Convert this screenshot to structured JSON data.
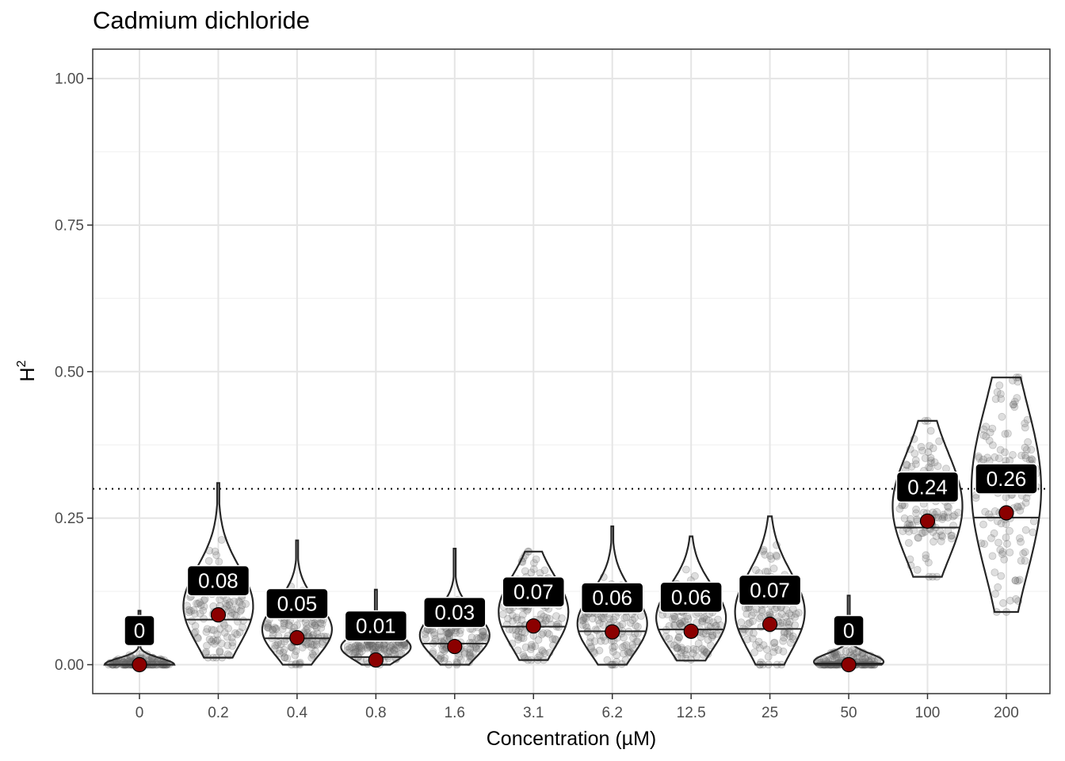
{
  "chart_data": {
    "type": "violin",
    "title": "Cadmium dichloride",
    "xlabel": "Concentration (µM)",
    "ylabel": "H",
    "ylabel_superscript": "2",
    "categories": [
      "0",
      "0.2",
      "0.4",
      "0.8",
      "1.6",
      "3.1",
      "6.2",
      "12.5",
      "25",
      "50",
      "100",
      "200"
    ],
    "y_ticks": [
      "0.00",
      "0.25",
      "0.50",
      "0.75",
      "1.00"
    ],
    "ylim": [
      -0.05,
      1.05
    ],
    "grid": true,
    "legend": "none",
    "reference_line": {
      "y": 0.3,
      "style": "dotted"
    },
    "point_estimate_labels": [
      "0",
      "0.08",
      "0.05",
      "0.01",
      "0.03",
      "0.07",
      "0.06",
      "0.06",
      "0.07",
      "0",
      "0.24",
      "0.26"
    ],
    "series": [
      {
        "point_estimates": [
          0.0,
          0.085,
          0.046,
          0.008,
          0.031,
          0.066,
          0.056,
          0.057,
          0.069,
          0.0,
          0.245,
          0.259
        ],
        "medians": [
          0.0,
          0.077,
          0.045,
          0.013,
          0.036,
          0.065,
          0.057,
          0.06,
          0.061,
          0.002,
          0.234,
          0.251
        ],
        "min": [
          0.0,
          0.012,
          0.0,
          0.0,
          0.0,
          0.008,
          0.0,
          0.007,
          0.0,
          0.0,
          0.15,
          0.09
        ],
        "max": [
          0.092,
          0.31,
          0.212,
          0.128,
          0.198,
          0.193,
          0.236,
          0.219,
          0.253,
          0.118,
          0.416,
          0.49
        ],
        "bulk_center": [
          0.0,
          0.1,
          0.06,
          0.03,
          0.05,
          0.09,
          0.07,
          0.08,
          0.09,
          0.005,
          0.27,
          0.3
        ]
      }
    ],
    "colors": {
      "violin_outline": "#262626",
      "jitter_points": "#666666",
      "point_estimate": "#8b0000",
      "label_bg": "#000000",
      "label_text": "#ffffff",
      "grid_major": "#e5e5e5",
      "grid_minor": "#f2f2f2",
      "panel_border": "#333333"
    }
  }
}
